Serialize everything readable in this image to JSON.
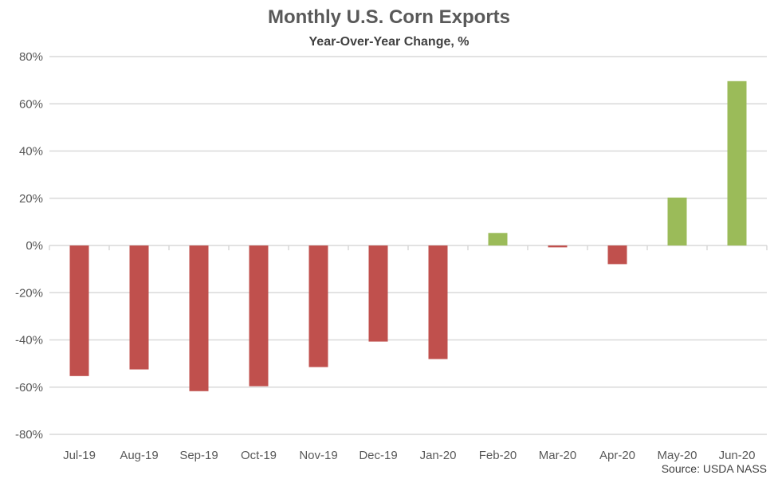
{
  "chart_data": {
    "type": "bar",
    "title": "Monthly U.S. Corn Exports",
    "subtitle": "Year-Over-Year Change, %",
    "source": "Source: USDA NASS",
    "xlabel": "",
    "ylabel": "",
    "categories": [
      "Jul-19",
      "Aug-19",
      "Sep-19",
      "Oct-19",
      "Nov-19",
      "Dec-19",
      "Jan-20",
      "Feb-20",
      "Mar-20",
      "Apr-20",
      "May-20",
      "Jun-20"
    ],
    "values": [
      -55.3,
      -52.5,
      -61.7,
      -59.6,
      -51.5,
      -40.7,
      -48.1,
      5.3,
      -0.8,
      -7.9,
      20.3,
      69.6
    ],
    "ylim": [
      -80,
      80
    ],
    "yticks": [
      -80,
      -60,
      -40,
      -20,
      0,
      20,
      40,
      60,
      80
    ],
    "ytick_format": "percent",
    "grid": true,
    "legend": "none",
    "colors": {
      "positive": "#9BBB59",
      "negative": "#C0504D",
      "grid": "#D9D9D9"
    }
  }
}
